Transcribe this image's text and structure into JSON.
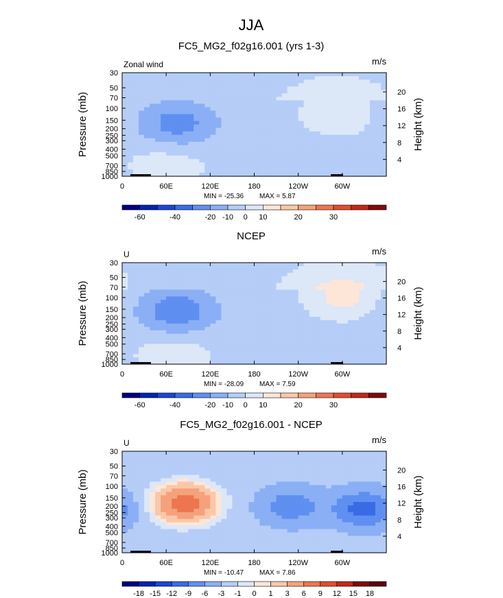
{
  "page_title": "JJA",
  "chart_data": [
    {
      "type": "heatmap",
      "title": "FC5_MG2_f02g16.001 (yrs 1-3)",
      "variable_label": "Zonal wind",
      "units": "m/s",
      "ylabel": "Pressure (mb)",
      "ylabel_right": "Height (km)",
      "pressure_ticks": [
        "30",
        "50",
        "70",
        "100",
        "150",
        "200",
        "250",
        "300",
        "400",
        "500",
        "700",
        "850",
        "1000"
      ],
      "height_ticks": [
        "20",
        "16",
        "12",
        "8",
        "4"
      ],
      "x_ticks": [
        "0",
        "60E",
        "120E",
        "180",
        "120W",
        "60W"
      ],
      "x_range": [
        0,
        360
      ],
      "y_range_mb": [
        1000,
        30
      ],
      "stats": {
        "min": "-25.36",
        "max": "5.87",
        "min_label": "MIN =",
        "max_label": "MAX ="
      },
      "colorbar": {
        "labels": [
          "-60",
          "-40",
          "-20",
          "-10",
          "0",
          "10",
          "20",
          "30"
        ],
        "colors": [
          "#00007f",
          "#0022b4",
          "#1a46d6",
          "#3a6be6",
          "#5f8ff0",
          "#8aaff5",
          "#b5cdf7",
          "#dce7f8",
          "#fde6d8",
          "#f9c8a8",
          "#f4a27c",
          "#ed7650",
          "#e04d2e",
          "#c0281a",
          "#7e0b0b"
        ]
      },
      "features": [
        {
          "name": "upper-tropo-jet-core",
          "lon": 75,
          "p": 170,
          "value": -25
        },
        {
          "name": "subtropical-westerly",
          "lon": 295,
          "p": 120,
          "value": 5
        },
        {
          "name": "low-level-monsoon-jet",
          "lon": 62,
          "p": 650,
          "value": 5
        }
      ]
    },
    {
      "type": "heatmap",
      "title": "NCEP",
      "variable_label": "U",
      "units": "m/s",
      "ylabel": "Pressure (mb)",
      "ylabel_right": "Height (km)",
      "pressure_ticks": [
        "30",
        "50",
        "70",
        "100",
        "150",
        "200",
        "250",
        "300",
        "400",
        "500",
        "700",
        "850",
        "1000"
      ],
      "height_ticks": [
        "20",
        "16",
        "12",
        "8",
        "4"
      ],
      "x_ticks": [
        "0",
        "60E",
        "120E",
        "180",
        "120W",
        "60W"
      ],
      "x_range": [
        0,
        360
      ],
      "y_range_mb": [
        1000,
        30
      ],
      "stats": {
        "min": "-28.09",
        "max": "7.59",
        "min_label": "MIN =",
        "max_label": "MAX ="
      },
      "colorbar": {
        "labels": [
          "-60",
          "-40",
          "-20",
          "-10",
          "0",
          "10",
          "20",
          "30"
        ],
        "colors": [
          "#00007f",
          "#0022b4",
          "#1a46d6",
          "#3a6be6",
          "#5f8ff0",
          "#8aaff5",
          "#b5cdf7",
          "#dce7f8",
          "#fde6d8",
          "#f9c8a8",
          "#f4a27c",
          "#ed7650",
          "#e04d2e",
          "#c0281a",
          "#7e0b0b"
        ]
      },
      "features": [
        {
          "name": "upper-tropo-jet-core",
          "lon": 75,
          "p": 160,
          "value": -28
        },
        {
          "name": "subtropical-westerly",
          "lon": 300,
          "p": 100,
          "value": 7
        },
        {
          "name": "low-level-monsoon-jet",
          "lon": 70,
          "p": 700,
          "value": 5
        }
      ]
    },
    {
      "type": "heatmap",
      "title": "FC5_MG2_f02g16.001 - NCEP",
      "variable_label": "U",
      "units": "m/s",
      "ylabel": "Pressure (mb)",
      "ylabel_right": "Height (km)",
      "pressure_ticks": [
        "30",
        "50",
        "70",
        "100",
        "150",
        "200",
        "250",
        "300",
        "400",
        "500",
        "700",
        "850",
        "1000"
      ],
      "height_ticks": [
        "20",
        "16",
        "12",
        "8",
        "4"
      ],
      "x_ticks": [
        "0",
        "60E",
        "120E",
        "180",
        "120W",
        "60W"
      ],
      "x_range": [
        0,
        360
      ],
      "y_range_mb": [
        1000,
        30
      ],
      "stats": {
        "min": "-10.47",
        "max": "7.86",
        "min_label": "MIN =",
        "max_label": "MAX ="
      },
      "colorbar": {
        "labels": [
          "-18",
          "-15",
          "-12",
          "-9",
          "-6",
          "-3",
          "-1",
          "0",
          "1",
          "3",
          "6",
          "9",
          "12",
          "15",
          "18"
        ],
        "colors": [
          "#00007f",
          "#0022b4",
          "#1a46d6",
          "#3a6be6",
          "#5f8ff0",
          "#8aaff5",
          "#b5cdf7",
          "#dce7f8",
          "#fde6d8",
          "#f9c8a8",
          "#f4a27c",
          "#ed7650",
          "#e04d2e",
          "#c0281a",
          "#7e0b0b",
          "#5a0505"
        ]
      },
      "features": [
        {
          "name": "diff-max-upper",
          "lon": 85,
          "p": 180,
          "value": 7.9
        },
        {
          "name": "diff-min-east",
          "lon": 330,
          "p": 220,
          "value": -10.5
        },
        {
          "name": "diff-min-central",
          "lon": 230,
          "p": 200,
          "value": -8
        }
      ]
    }
  ]
}
